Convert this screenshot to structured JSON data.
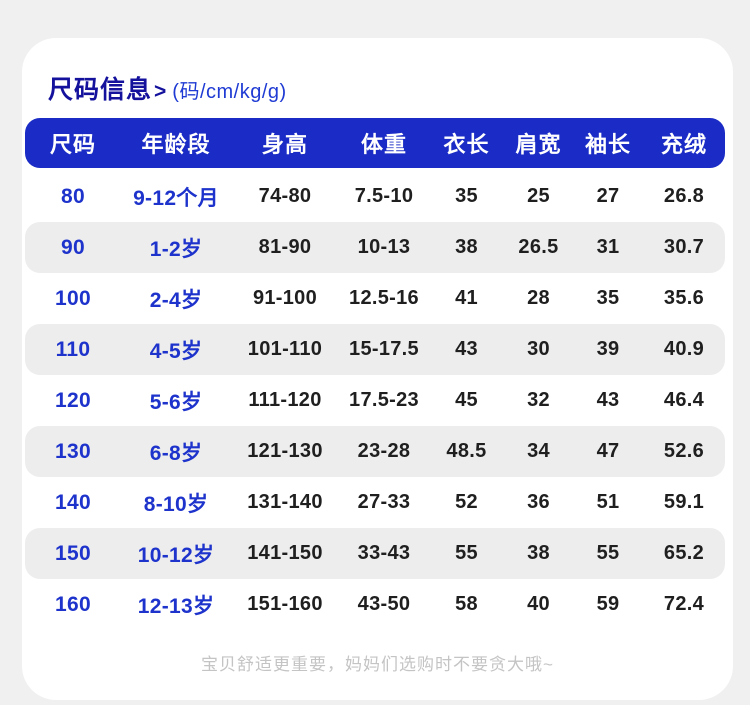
{
  "page": {
    "title": "尺码信息",
    "title_arrow": ">",
    "subtitle": "(码/cm/kg/g)",
    "footer_note": "宝贝舒适更重要，妈妈们选购时不要贪大哦~"
  },
  "colors": {
    "page_bg": "#f0f0f0",
    "card_bg": "#ffffff",
    "header_bar_blue": "#1a2cc5",
    "title_navy": "#14119c",
    "subtitle_blue": "#1f3bd3",
    "blue_cell_text": "#1d33cb",
    "dark_cell_text": "#1f1f1f",
    "alt_row_gray": "#ededed",
    "footer_gray": "#c4c4c4"
  },
  "table": {
    "headers": [
      "尺码",
      "年龄段",
      "身高",
      "体重",
      "衣长",
      "肩宽",
      "袖长",
      "充绒"
    ],
    "rows": [
      [
        "80",
        "9-12个月",
        "74-80",
        "7.5-10",
        "35",
        "25",
        "27",
        "26.8"
      ],
      [
        "90",
        "1-2岁",
        "81-90",
        "10-13",
        "38",
        "26.5",
        "31",
        "30.7"
      ],
      [
        "100",
        "2-4岁",
        "91-100",
        "12.5-16",
        "41",
        "28",
        "35",
        "35.6"
      ],
      [
        "110",
        "4-5岁",
        "101-110",
        "15-17.5",
        "43",
        "30",
        "39",
        "40.9"
      ],
      [
        "120",
        "5-6岁",
        "111-120",
        "17.5-23",
        "45",
        "32",
        "43",
        "46.4"
      ],
      [
        "130",
        "6-8岁",
        "121-130",
        "23-28",
        "48.5",
        "34",
        "47",
        "52.6"
      ],
      [
        "140",
        "8-10岁",
        "131-140",
        "27-33",
        "52",
        "36",
        "51",
        "59.1"
      ],
      [
        "150",
        "10-12岁",
        "141-150",
        "33-43",
        "55",
        "38",
        "55",
        "65.2"
      ],
      [
        "160",
        "12-13岁",
        "151-160",
        "43-50",
        "58",
        "40",
        "59",
        "72.4"
      ]
    ]
  }
}
